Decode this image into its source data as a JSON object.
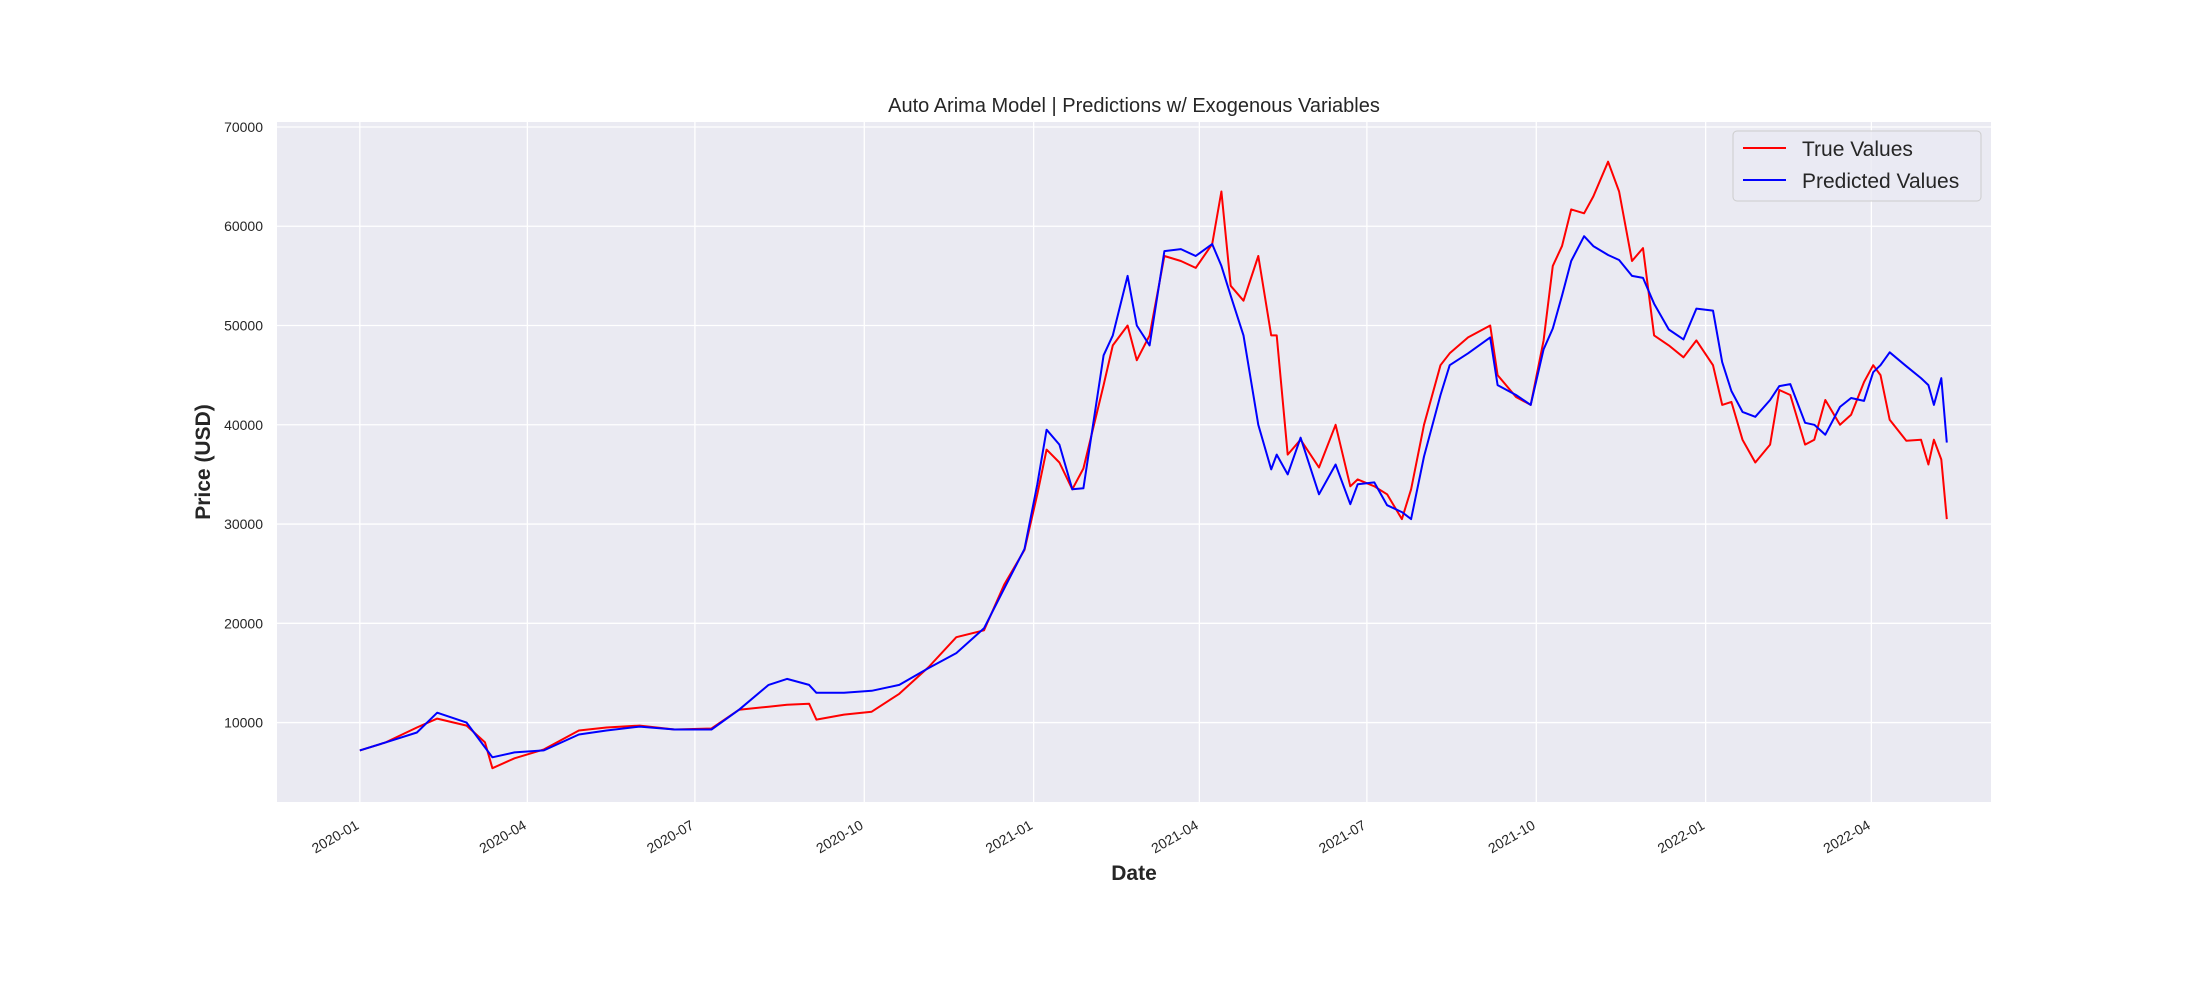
{
  "colors": {
    "plot_bg": "#EAEAF2",
    "grid": "#FFFFFF",
    "true_values": "#FF0000",
    "predicted_values": "#0000FF",
    "legend_border": "#CCCCCC"
  },
  "chart_data": {
    "type": "line",
    "title": "Auto Arima Model | Predictions w/ Exogenous Variables",
    "xlabel": "Date",
    "ylabel": "Price (USD)",
    "x_ticks": [
      "2020-01",
      "2020-04",
      "2020-07",
      "2020-10",
      "2021-01",
      "2021-04",
      "2021-07",
      "2021-10",
      "2022-01",
      "2022-04"
    ],
    "y_ticks": [
      10000,
      20000,
      30000,
      40000,
      50000,
      60000,
      70000
    ],
    "ylim": [
      2000,
      70500
    ],
    "xlim": [
      "2019-11-17",
      "2022-06-05"
    ],
    "grid": true,
    "legend_position": "top-right",
    "x": [
      "2020-01-01",
      "2020-01-15",
      "2020-02-01",
      "2020-02-12",
      "2020-02-28",
      "2020-03-09",
      "2020-03-13",
      "2020-03-25",
      "2020-04-10",
      "2020-04-29",
      "2020-05-14",
      "2020-06-01",
      "2020-06-20",
      "2020-07-10",
      "2020-07-25",
      "2020-08-10",
      "2020-08-20",
      "2020-09-01",
      "2020-09-05",
      "2020-09-20",
      "2020-10-05",
      "2020-10-20",
      "2020-11-05",
      "2020-11-20",
      "2020-12-05",
      "2020-12-16",
      "2020-12-27",
      "2021-01-03",
      "2021-01-08",
      "2021-01-15",
      "2021-01-22",
      "2021-01-28",
      "2021-02-08",
      "2021-02-13",
      "2021-02-21",
      "2021-02-26",
      "2021-03-05",
      "2021-03-13",
      "2021-03-22",
      "2021-03-30",
      "2021-04-08",
      "2021-04-13",
      "2021-04-18",
      "2021-04-25",
      "2021-05-03",
      "2021-05-10",
      "2021-05-13",
      "2021-05-19",
      "2021-05-26",
      "2021-06-05",
      "2021-06-14",
      "2021-06-22",
      "2021-06-26",
      "2021-07-05",
      "2021-07-12",
      "2021-07-20",
      "2021-07-25",
      "2021-08-01",
      "2021-08-10",
      "2021-08-15",
      "2021-08-25",
      "2021-09-06",
      "2021-09-10",
      "2021-09-20",
      "2021-09-28",
      "2021-10-05",
      "2021-10-10",
      "2021-10-15",
      "2021-10-20",
      "2021-10-27",
      "2021-11-01",
      "2021-11-09",
      "2021-11-15",
      "2021-11-22",
      "2021-11-28",
      "2021-12-04",
      "2021-12-12",
      "2021-12-20",
      "2021-12-27",
      "2022-01-05",
      "2022-01-10",
      "2022-01-15",
      "2022-01-21",
      "2022-01-28",
      "2022-02-05",
      "2022-02-10",
      "2022-02-16",
      "2022-02-24",
      "2022-03-01",
      "2022-03-07",
      "2022-03-15",
      "2022-03-21",
      "2022-03-28",
      "2022-04-02",
      "2022-04-06",
      "2022-04-11",
      "2022-04-20",
      "2022-04-28",
      "2022-05-02",
      "2022-05-05",
      "2022-05-09",
      "2022-05-12"
    ],
    "series": [
      {
        "name": "True Values",
        "values": [
          7200,
          8000,
          9500,
          10400,
          9700,
          8000,
          5400,
          6400,
          7300,
          9200,
          9500,
          9700,
          9300,
          9400,
          11300,
          11600,
          11800,
          11900,
          10300,
          10800,
          11100,
          12900,
          15600,
          18600,
          19300,
          23900,
          27400,
          33000,
          37500,
          36200,
          33500,
          35600,
          44000,
          48000,
          50000,
          46500,
          49000,
          57000,
          56500,
          55800,
          58200,
          63500,
          54000,
          52500,
          57000,
          49000,
          49000,
          37000,
          38500,
          35700,
          40000,
          33800,
          34500,
          33800,
          33000,
          30500,
          33500,
          40000,
          46000,
          47200,
          48800,
          50000,
          45000,
          42800,
          42000,
          48500,
          56000,
          58000,
          61700,
          61300,
          63000,
          66500,
          63500,
          56500,
          57800,
          49000,
          48000,
          46800,
          48500,
          46000,
          42000,
          42300,
          38500,
          36200,
          38000,
          43500,
          43000,
          38000,
          38500,
          42500,
          40000,
          41000,
          44300,
          46000,
          45000,
          40500,
          38400,
          38500,
          36000,
          38500,
          36500,
          30500
        ]
      },
      {
        "name": "Predicted Values",
        "values": [
          7200,
          8000,
          9000,
          11000,
          10000,
          7500,
          6500,
          7000,
          7200,
          8800,
          9200,
          9600,
          9300,
          9300,
          11300,
          13800,
          14400,
          13800,
          13000,
          13000,
          13200,
          13800,
          15500,
          17000,
          19500,
          23500,
          27500,
          34000,
          39500,
          38000,
          33500,
          33600,
          47000,
          49000,
          55000,
          50000,
          48000,
          57500,
          57700,
          57000,
          58200,
          56000,
          53000,
          49000,
          40000,
          35500,
          37000,
          35000,
          38700,
          33000,
          36000,
          32000,
          34000,
          34200,
          31900,
          31200,
          30500,
          36800,
          43000,
          46000,
          47200,
          48800,
          44000,
          43000,
          42000,
          47600,
          49700,
          53000,
          56500,
          59000,
          58000,
          57100,
          56600,
          55000,
          54800,
          52200,
          49600,
          48600,
          51700,
          51500,
          46300,
          43400,
          41300,
          40800,
          42500,
          43900,
          44100,
          40200,
          40000,
          39000,
          41800,
          42700,
          42400,
          45300,
          46000,
          47300,
          45900,
          44700,
          44000,
          42000,
          44700,
          38200
        ]
      }
    ]
  },
  "legend": {
    "items": [
      {
        "label": "True Values"
      },
      {
        "label": "Predicted Values"
      }
    ]
  }
}
